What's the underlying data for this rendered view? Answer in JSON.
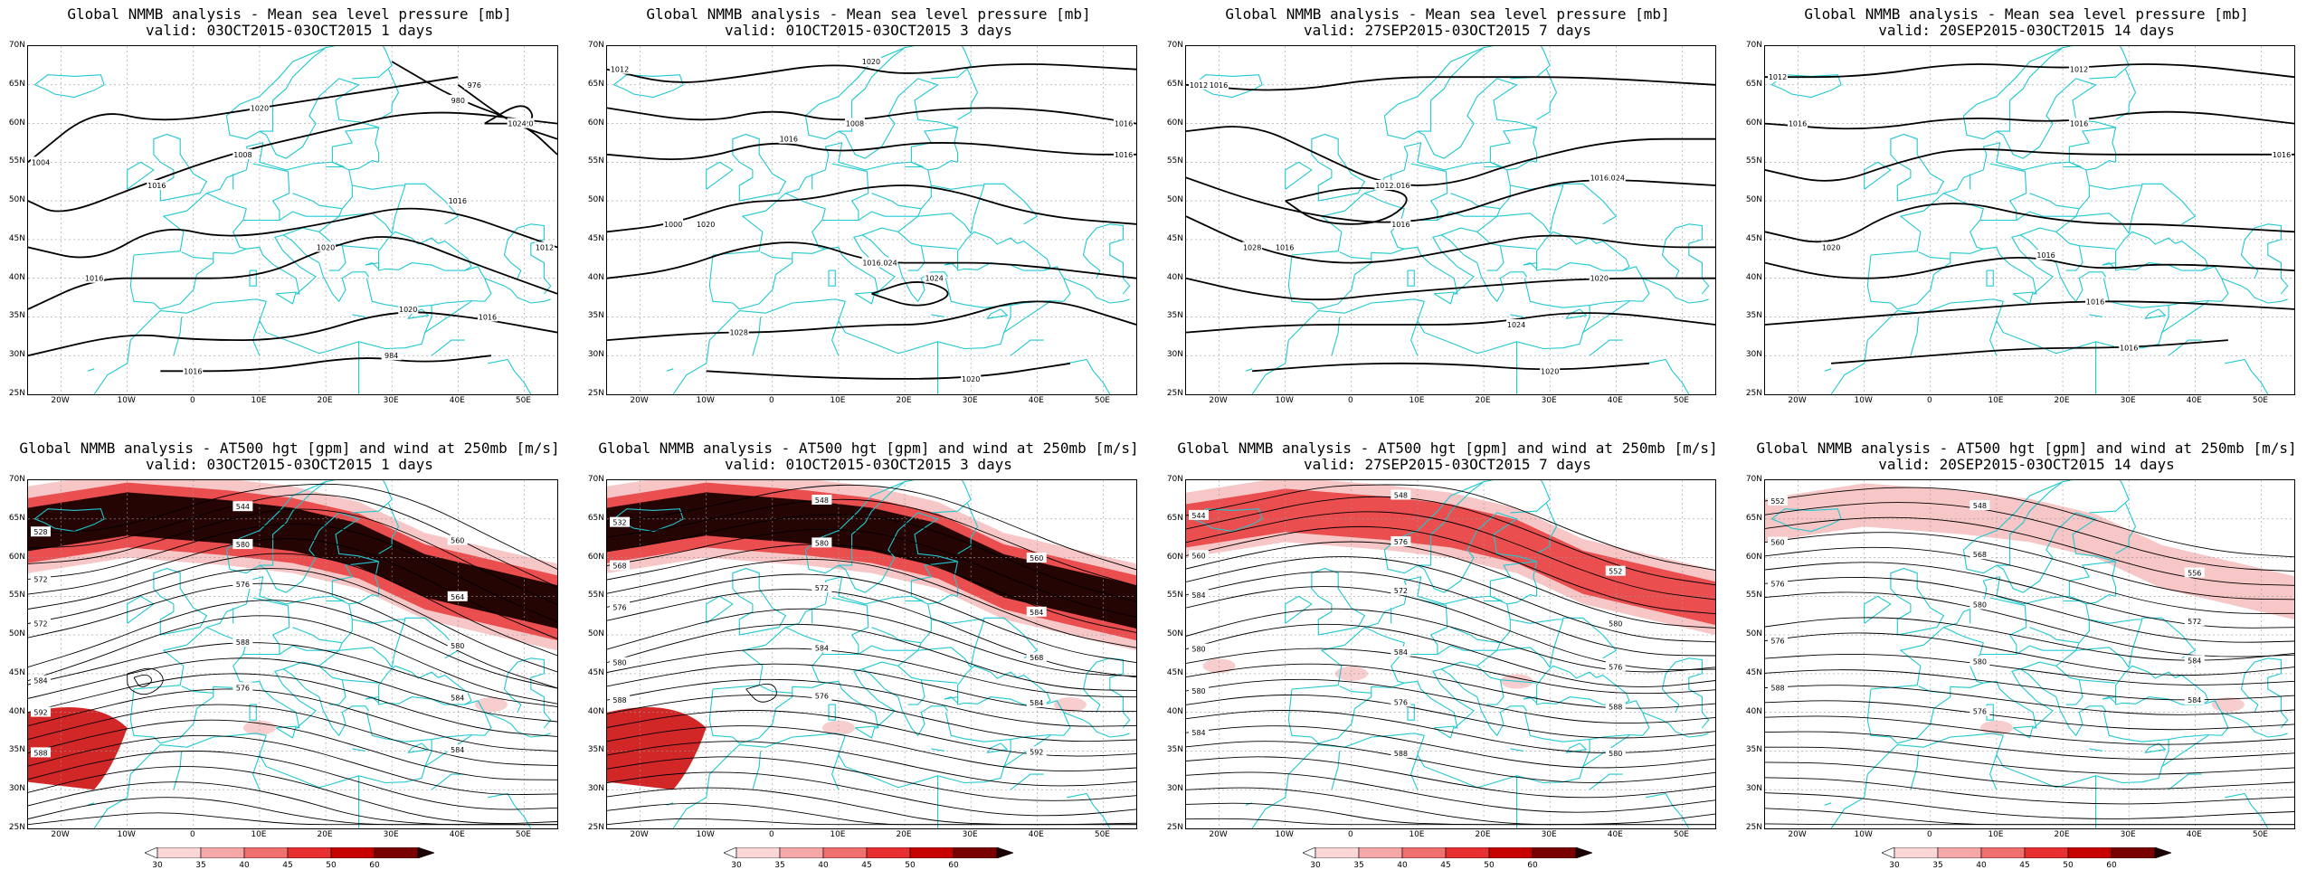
{
  "panels": [
    {
      "row": 0,
      "title": "Global NMMB analysis - Mean sea level pressure [mb]",
      "subtitle": "valid: 03OCT2015-03OCT2015  1 days",
      "type": "mslp",
      "jet": 0,
      "labels": [
        "1004",
        "1008",
        "1012",
        "1016",
        "1016",
        "1016",
        "1020",
        "1024",
        "1024",
        "1020",
        "1016",
        "1016",
        "1020",
        "1020",
        "984",
        "980",
        "976"
      ]
    },
    {
      "row": 0,
      "title": "Global NMMB analysis - Mean sea level pressure [mb]",
      "subtitle": "valid: 01OCT2015-03OCT2015  3 days",
      "type": "mslp",
      "jet": 0,
      "labels": [
        "1012",
        "1008",
        "1016",
        "1000",
        "1024",
        "1028",
        "1020",
        "1024",
        "1020",
        "1016",
        "1016",
        "1020",
        "1016"
      ]
    },
    {
      "row": 0,
      "title": "Global NMMB analysis - Mean sea level pressure [mb]",
      "subtitle": "valid: 27SEP2015-03OCT2015  7 days",
      "type": "mslp",
      "jet": 0,
      "labels": [
        "1012",
        "1016",
        "1024",
        "1028",
        "1020",
        "1024",
        "1020",
        "1016",
        "1016",
        "1012",
        "1016",
        "1016"
      ]
    },
    {
      "row": 0,
      "title": "Global NMMB analysis - Mean sea level pressure [mb]",
      "subtitle": "valid: 20SEP2015-03OCT2015  14 days",
      "type": "mslp",
      "jet": 0,
      "labels": [
        "1012",
        "1016",
        "1020",
        "1020",
        "1016",
        "1016",
        "1016",
        "1012",
        "1016",
        "1016"
      ]
    },
    {
      "row": 1,
      "title": "Global NMMB analysis - AT500 hgt [gpm] and wind at 250mb [m/s]",
      "subtitle": "valid: 03OCT2015-03OCT2015  1 days",
      "type": "z500",
      "jet": 3,
      "labels": [
        "528",
        "544",
        "560",
        "572",
        "580",
        "564",
        "572",
        "576",
        "580",
        "584",
        "588",
        "584",
        "592",
        "576",
        "584",
        "588"
      ]
    },
    {
      "row": 1,
      "title": "Global NMMB analysis - AT500 hgt [gpm] and wind at 250mb [m/s]",
      "subtitle": "valid: 01OCT2015-03OCT2015  3 days",
      "type": "z500",
      "jet": 3,
      "labels": [
        "532",
        "548",
        "560",
        "568",
        "580",
        "584",
        "576",
        "572",
        "568",
        "580",
        "584",
        "584",
        "588",
        "576",
        "592"
      ]
    },
    {
      "row": 1,
      "title": "Global NMMB analysis - AT500 hgt [gpm] and wind at 250mb [m/s]",
      "subtitle": "valid: 27SEP2015-03OCT2015  7 days",
      "type": "z500",
      "jet": 2,
      "labels": [
        "544",
        "548",
        "552",
        "560",
        "576",
        "580",
        "584",
        "572",
        "576",
        "580",
        "584",
        "588",
        "580",
        "576",
        "580",
        "584",
        "588"
      ]
    },
    {
      "row": 1,
      "title": "Global NMMB analysis - AT500 hgt [gpm] and wind at 250mb [m/s]",
      "subtitle": "valid: 20SEP2015-03OCT2015  14 days",
      "type": "z500",
      "jet": 1,
      "labels": [
        "552",
        "548",
        "556",
        "560",
        "568",
        "572",
        "576",
        "580",
        "584",
        "576",
        "580",
        "584",
        "588",
        "576"
      ]
    }
  ],
  "lat_labels": [
    "70N",
    "65N",
    "60N",
    "55N",
    "50N",
    "45N",
    "40N",
    "35N",
    "30N",
    "25N"
  ],
  "lon_labels": [
    "20W",
    "10W",
    "0",
    "10E",
    "20E",
    "30E",
    "40E",
    "50E"
  ],
  "colorbar_labels": [
    "30",
    "35",
    "40",
    "45",
    "50",
    "60"
  ],
  "colors": {
    "coast": "#20c8d0",
    "contour": "#000000",
    "grid": "#9a9a9a",
    "jet_light": "#f6c0c0",
    "jet_mid": "#ee2020",
    "jet_dark": "#1a0000"
  }
}
